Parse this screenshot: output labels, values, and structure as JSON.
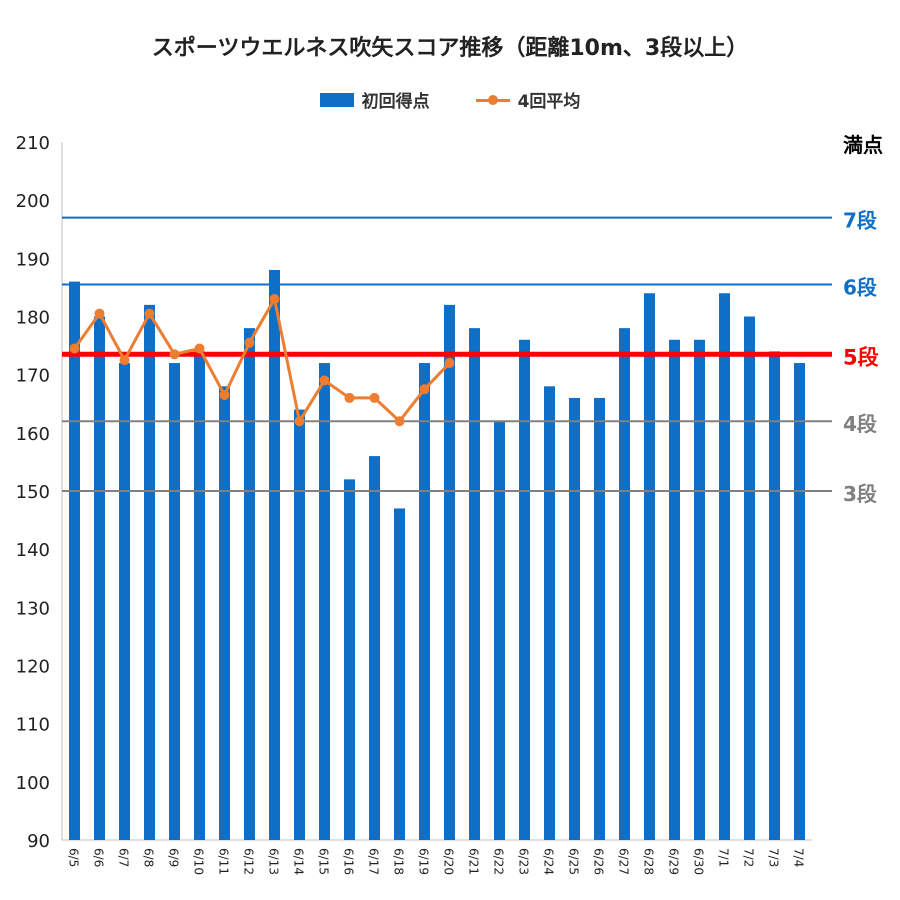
{
  "chart_data": {
    "type": "bar",
    "title": "スポーツウエルネス吹矢スコア推移（距離10m、3段以上）",
    "categories": [
      "6/5",
      "6/6",
      "6/7",
      "6/8",
      "6/9",
      "6/10",
      "6/11",
      "6/12",
      "6/13",
      "6/14",
      "6/15",
      "6/16",
      "6/17",
      "6/18",
      "6/19",
      "6/20",
      "6/21",
      "6/22",
      "6/23",
      "6/24",
      "6/25",
      "6/26",
      "6/27",
      "6/28",
      "6/29",
      "6/30",
      "7/1",
      "7/2",
      "7/3",
      "7/4"
    ],
    "series": [
      {
        "name": "初回得点",
        "kind": "bar",
        "color": "#0f6fc6",
        "values": [
          186,
          180,
          172,
          182,
          172,
          174,
          168,
          178,
          188,
          164,
          172,
          152,
          156,
          147,
          172,
          182,
          178,
          162,
          176,
          168,
          166,
          166,
          178,
          184,
          176,
          176,
          184,
          180,
          174,
          172
        ]
      },
      {
        "name": "4回平均",
        "kind": "line",
        "color": "#ed7d31",
        "values": [
          174.5,
          180.5,
          172.5,
          180.5,
          173.5,
          174.5,
          166.5,
          175.5,
          183,
          162,
          169,
          166,
          166,
          162,
          167.5,
          172,
          null,
          null,
          null,
          null,
          null,
          null,
          null,
          null,
          null,
          null,
          null,
          null,
          null,
          null
        ]
      }
    ],
    "ylim": [
      90,
      210
    ],
    "yticks": [
      90,
      100,
      110,
      120,
      130,
      140,
      150,
      160,
      170,
      180,
      190,
      200,
      210
    ],
    "reference_lines": [
      {
        "label": "満点",
        "value": 210,
        "color": "#000000",
        "show_line": false
      },
      {
        "label": "7段",
        "value": 197,
        "color": "#0f6fc6",
        "show_line": true,
        "emphasis": false
      },
      {
        "label": "6段",
        "value": 185.5,
        "color": "#0f6fc6",
        "show_line": true,
        "emphasis": false
      },
      {
        "label": "5段",
        "value": 173.5,
        "color": "#ff0000",
        "show_line": true,
        "emphasis": true
      },
      {
        "label": "4段",
        "value": 162,
        "color": "#808080",
        "show_line": true,
        "emphasis": false
      },
      {
        "label": "3段",
        "value": 150,
        "color": "#808080",
        "show_line": true,
        "emphasis": false
      }
    ],
    "grid": false,
    "legend_position": "top"
  }
}
